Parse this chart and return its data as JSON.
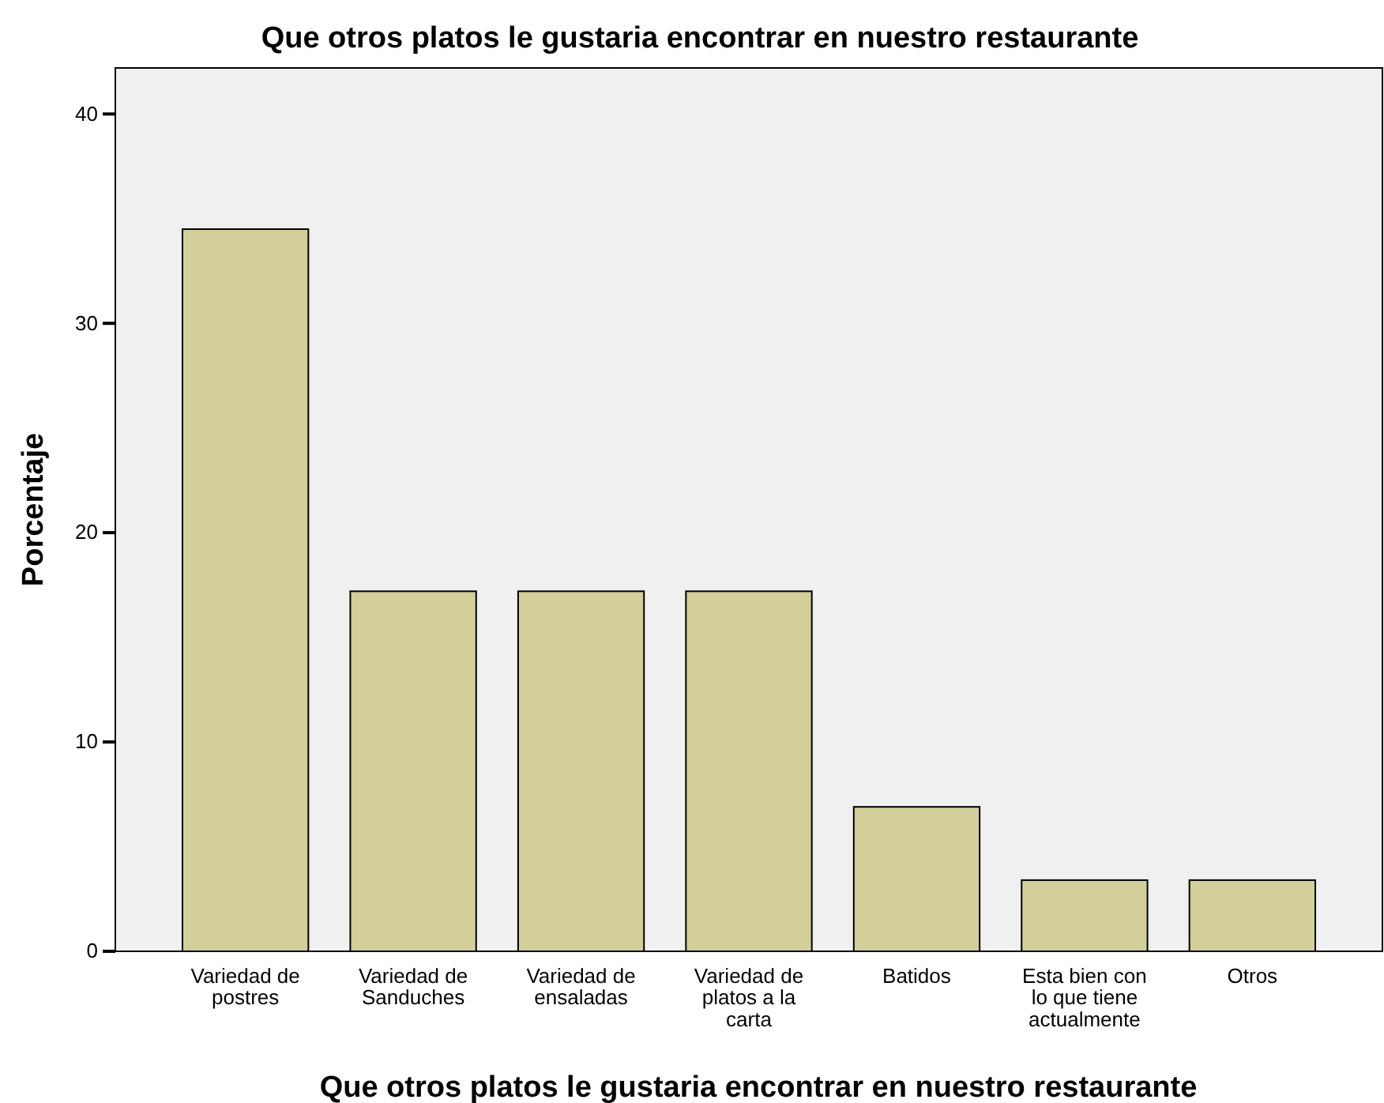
{
  "chart_data": {
    "type": "bar",
    "title": "Que otros platos le gustaria encontrar en nuestro restaurante",
    "xlabel": "Que otros platos le gustaria encontrar en nuestro restaurante",
    "ylabel": "Porcentaje",
    "categories": [
      "Variedad de postres",
      "Variedad de Sanduches",
      "Variedad de ensaladas",
      "Variedad de platos a la carta",
      "Batidos",
      "Esta bien con lo que tiene actualmente",
      "Otros"
    ],
    "values": [
      34.5,
      17.2,
      17.2,
      17.2,
      6.9,
      3.4,
      3.4
    ],
    "color": "#d3cf9a",
    "ylim": [
      0,
      42.2
    ],
    "yticks": [
      0,
      10,
      20,
      30,
      40
    ],
    "grid": false
  }
}
